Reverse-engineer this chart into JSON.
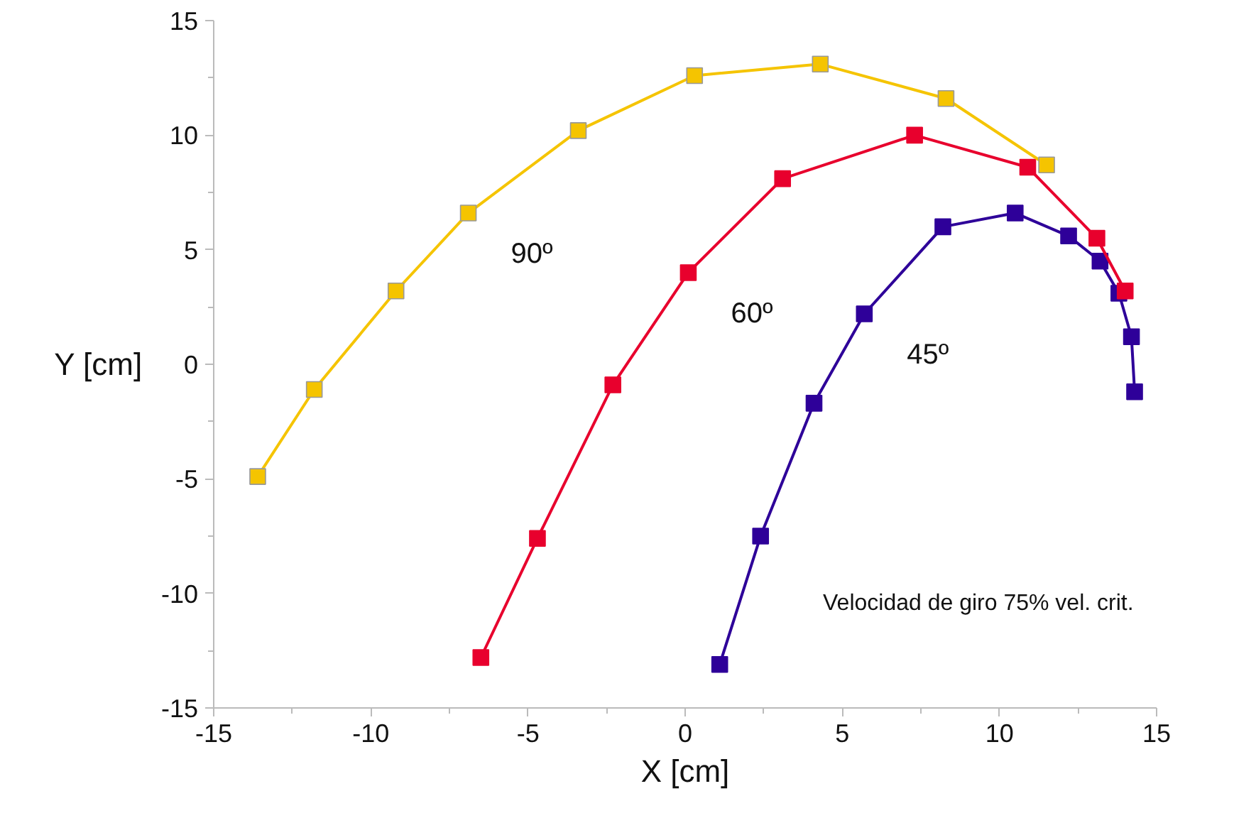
{
  "chart_data": {
    "type": "line",
    "xlabel": "X [cm]",
    "ylabel": "Y [cm]",
    "xlim": [
      -15,
      15
    ],
    "ylim": [
      -15,
      15
    ],
    "xticks": [
      -15,
      -10,
      -5,
      0,
      5,
      10,
      15
    ],
    "yticks": [
      -15,
      -10,
      -5,
      0,
      5,
      10,
      15
    ],
    "grid": false,
    "legend": false,
    "marker": "square",
    "line_style": "solid",
    "annotations": [
      "Velocidad de giro 75% vel. crit."
    ],
    "series": [
      {
        "name": "90º",
        "color": "#f5c400",
        "x": [
          -13.6,
          -11.8,
          -9.2,
          -6.9,
          -3.4,
          0.3,
          4.3,
          8.3,
          11.5
        ],
        "values": [
          -4.9,
          -1.1,
          3.2,
          6.6,
          10.2,
          12.6,
          13.1,
          11.6,
          8.7
        ]
      },
      {
        "name": "60º",
        "color": "#e8002d",
        "x": [
          -6.5,
          -4.7,
          -2.3,
          0.1,
          3.1,
          7.3,
          10.9,
          13.1,
          14.0
        ],
        "values": [
          -12.8,
          -7.6,
          -0.9,
          4.0,
          8.1,
          10.0,
          8.6,
          5.5,
          3.2
        ]
      },
      {
        "name": "45º",
        "color": "#2e0099",
        "x": [
          1.1,
          2.4,
          4.1,
          5.7,
          8.2,
          10.5,
          12.2,
          13.2,
          13.8,
          14.2,
          14.3
        ],
        "values": [
          -13.1,
          -7.5,
          -1.7,
          2.2,
          6.0,
          6.6,
          5.6,
          4.5,
          3.1,
          1.2,
          -1.2
        ]
      }
    ]
  }
}
